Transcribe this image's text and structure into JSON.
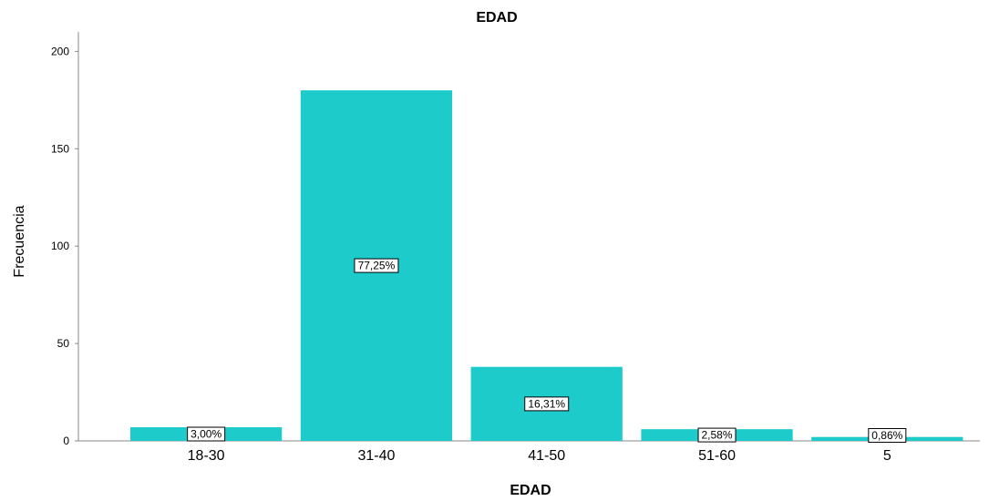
{
  "chart_data": {
    "type": "bar",
    "title": "EDAD",
    "xlabel": "EDAD",
    "ylabel": "Frecuencia",
    "categories": [
      "18-30",
      "31-40",
      "41-50",
      "51-60",
      "5"
    ],
    "values": [
      7,
      180,
      38,
      6,
      2
    ],
    "data_labels": [
      "3,00%",
      "77,25%",
      "16,31%",
      "2,58%",
      "0,86%"
    ],
    "yticks": [
      0,
      50,
      100,
      150,
      200
    ],
    "ylim": [
      0,
      210
    ],
    "grid": false,
    "legend": "none",
    "bar_color": "#1ecbcb"
  }
}
